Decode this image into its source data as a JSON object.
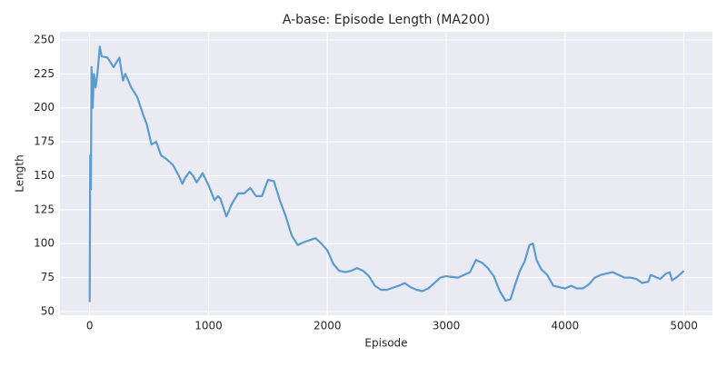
{
  "chart_data": {
    "type": "line",
    "title": "A-base: Episode Length (MA200)",
    "x_label": "Episode",
    "y_label": "Length",
    "x": [
      0,
      5,
      10,
      15,
      25,
      35,
      50,
      65,
      85,
      100,
      150,
      200,
      250,
      280,
      300,
      350,
      400,
      450,
      480,
      520,
      560,
      600,
      650,
      700,
      750,
      780,
      800,
      840,
      870,
      900,
      950,
      1000,
      1050,
      1080,
      1100,
      1150,
      1200,
      1250,
      1300,
      1350,
      1400,
      1450,
      1500,
      1550,
      1600,
      1650,
      1700,
      1750,
      1800,
      1900,
      1950,
      2000,
      2050,
      2100,
      2150,
      2200,
      2250,
      2300,
      2350,
      2400,
      2450,
      2500,
      2600,
      2650,
      2700,
      2750,
      2800,
      2850,
      2900,
      2950,
      3000,
      3100,
      3200,
      3250,
      3300,
      3350,
      3400,
      3450,
      3500,
      3540,
      3580,
      3620,
      3660,
      3700,
      3730,
      3760,
      3800,
      3850,
      3900,
      3950,
      4000,
      4050,
      4100,
      4150,
      4200,
      4250,
      4300,
      4350,
      4400,
      4450,
      4500,
      4550,
      4600,
      4650,
      4700,
      4720,
      4800,
      4850,
      4880,
      4900,
      4950,
      5000
    ],
    "values": [
      57,
      165,
      140,
      230,
      200,
      225,
      215,
      225,
      245,
      238,
      237,
      230,
      237,
      220,
      225,
      215,
      208,
      195,
      188,
      173,
      175,
      165,
      162,
      158,
      150,
      144,
      148,
      153,
      150,
      145,
      152,
      143,
      132,
      135,
      133,
      120,
      130,
      137,
      137,
      141,
      135,
      135,
      147,
      146,
      132,
      120,
      106,
      99,
      101,
      104,
      100,
      95,
      85,
      80,
      79,
      80,
      82,
      80,
      76,
      69,
      66,
      66,
      69,
      71,
      68,
      66,
      65,
      67,
      71,
      75,
      76,
      75,
      79,
      88,
      86,
      82,
      76,
      65,
      58,
      59,
      70,
      80,
      87,
      99,
      100,
      88,
      81,
      77,
      69,
      68,
      67,
      69,
      67,
      67,
      70,
      75,
      77,
      78,
      79,
      77,
      75,
      75,
      74,
      71,
      72,
      77,
      74,
      78,
      79,
      73,
      76,
      80
    ],
    "color": "#5a9bd0",
    "xlim": [
      -250,
      5240
    ],
    "ylim": [
      47.3,
      256
    ],
    "xticks": [
      0,
      1000,
      2000,
      3000,
      4000,
      5000
    ],
    "yticks": [
      50,
      75,
      100,
      125,
      150,
      175,
      200,
      225,
      250
    ],
    "grid": true
  }
}
